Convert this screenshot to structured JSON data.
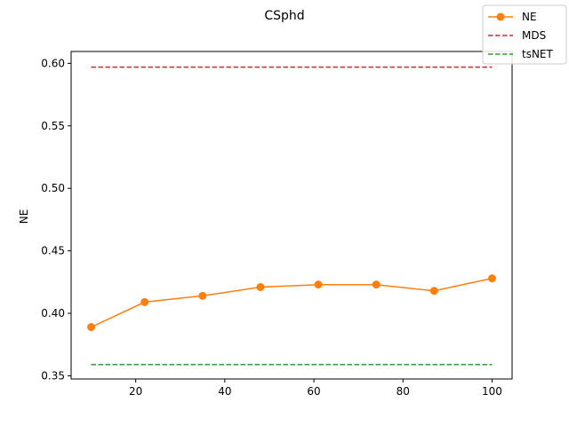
{
  "chart_data": {
    "type": "line",
    "title": "CSphd",
    "xlabel": "",
    "ylabel": "NE",
    "xlim": [
      5.5,
      104.5
    ],
    "ylim": [
      0.3475,
      0.6095
    ],
    "xticks": [
      20,
      40,
      60,
      80,
      100
    ],
    "xtick_labels": [
      "20",
      "40",
      "60",
      "80",
      "100"
    ],
    "yticks": [
      0.35,
      0.4,
      0.45,
      0.5,
      0.55,
      0.6
    ],
    "ytick_labels": [
      "0.35",
      "0.40",
      "0.45",
      "0.50",
      "0.55",
      "0.60"
    ],
    "grid": false,
    "legend_position": "top-right",
    "series": [
      {
        "name": "NE",
        "style": "solid-markers",
        "color": "#ff7f0e",
        "x": [
          10,
          22,
          35,
          48,
          61,
          74,
          87,
          100
        ],
        "y": [
          0.389,
          0.409,
          0.414,
          0.421,
          0.423,
          0.423,
          0.418,
          0.428
        ]
      },
      {
        "name": "MDS",
        "style": "dashed",
        "color": "#d62728",
        "x": [
          10,
          100
        ],
        "y": [
          0.597,
          0.597
        ]
      },
      {
        "name": "tsNET",
        "style": "dashed",
        "color": "#2ca02c",
        "x": [
          10,
          100
        ],
        "y": [
          0.359,
          0.359
        ]
      }
    ]
  }
}
